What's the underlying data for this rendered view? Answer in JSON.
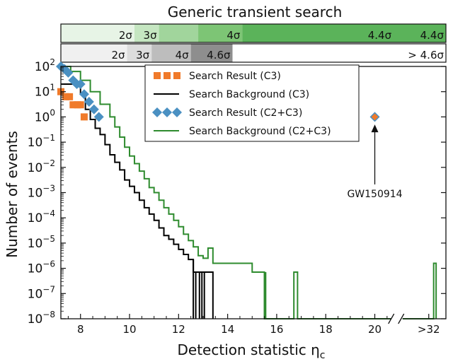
{
  "chart_data": {
    "type": "step-histogram",
    "title": "Generic transient search",
    "xlabel": "Detection statistic η",
    "xlabel_sub": "c",
    "ylabel": "Number of events",
    "yscale": "log",
    "ylim_exponents": [
      -8,
      2
    ],
    "xlim": [
      7.2,
      22.9
    ],
    "x_ticks": [
      {
        "value": 8,
        "label": "8"
      },
      {
        "value": 10,
        "label": "10"
      },
      {
        "value": 12,
        "label": "12"
      },
      {
        "value": 14,
        "label": "14"
      },
      {
        "value": 16,
        "label": "16"
      },
      {
        "value": 18,
        "label": "18"
      },
      {
        "value": 20,
        "label": "20"
      },
      {
        "value": 22.2,
        "label": ">32"
      }
    ],
    "axis_break_at": 20.9,
    "significance_bands": {
      "c2c3": {
        "bands": [
          {
            "from": 7.2,
            "to": 10.2,
            "label": "2σ",
            "color": "#e7f4e6"
          },
          {
            "from": 10.2,
            "to": 11.2,
            "label": "3σ",
            "color": "#c5e6c1"
          },
          {
            "from": 11.2,
            "to": 12.8,
            "label": "",
            "color": "#a1d59c"
          },
          {
            "from": 12.8,
            "to": 14.6,
            "label": "4σ",
            "color": "#7dc575"
          },
          {
            "from": 14.6,
            "to": 22.9,
            "label": "4.4σ",
            "color": "#5bb35a"
          }
        ],
        "extra_labels": [
          {
            "value": 20.2,
            "label": "4.4σ"
          }
        ]
      },
      "c3": {
        "bands": [
          {
            "from": 7.2,
            "to": 9.9,
            "label": "2σ",
            "color": "#f0f0f0"
          },
          {
            "from": 9.9,
            "to": 10.9,
            "label": "3σ",
            "color": "#dddddd"
          },
          {
            "from": 10.9,
            "to": 12.5,
            "label": "4σ",
            "color": "#bdbdbd"
          },
          {
            "from": 12.5,
            "to": 14.2,
            "label": "4.6σ",
            "color": "#8e8e8e"
          },
          {
            "from": 14.2,
            "to": 22.9,
            "label": "> 4.6σ",
            "color": "#ffffff"
          }
        ]
      }
    },
    "series": [
      {
        "name": "Search Result (C3)",
        "kind": "markers",
        "marker": "square",
        "color": "#f07a2a",
        "points": [
          {
            "x": 7.2,
            "log10y": 1.0
          },
          {
            "x": 7.4,
            "log10y": 0.8
          },
          {
            "x": 7.55,
            "log10y": 0.8
          },
          {
            "x": 7.7,
            "log10y": 0.48
          },
          {
            "x": 7.88,
            "log10y": 0.48
          },
          {
            "x": 8.0,
            "log10y": 0.48
          },
          {
            "x": 8.15,
            "log10y": 0.0
          }
        ]
      },
      {
        "name": "Search Background (C3)",
        "kind": "step",
        "color": "#000000",
        "steps": [
          {
            "x": 7.2,
            "log10y": 1.3
          },
          {
            "x": 8.0,
            "log10y": 0.9
          },
          {
            "x": 8.2,
            "log10y": 0.3
          },
          {
            "x": 8.4,
            "log10y": -0.1
          },
          {
            "x": 8.6,
            "log10y": -0.45
          },
          {
            "x": 8.8,
            "log10y": -0.7
          },
          {
            "x": 9.0,
            "log10y": -1.1
          },
          {
            "x": 9.2,
            "log10y": -1.5
          },
          {
            "x": 9.4,
            "log10y": -1.8
          },
          {
            "x": 9.6,
            "log10y": -2.1
          },
          {
            "x": 9.8,
            "log10y": -2.5
          },
          {
            "x": 10.0,
            "log10y": -2.75
          },
          {
            "x": 10.2,
            "log10y": -3.0
          },
          {
            "x": 10.4,
            "log10y": -3.3
          },
          {
            "x": 10.6,
            "log10y": -3.6
          },
          {
            "x": 10.8,
            "log10y": -3.85
          },
          {
            "x": 11.0,
            "log10y": -4.1
          },
          {
            "x": 11.2,
            "log10y": -4.4
          },
          {
            "x": 11.4,
            "log10y": -4.7
          },
          {
            "x": 11.6,
            "log10y": -4.85
          },
          {
            "x": 11.8,
            "log10y": -5.05
          },
          {
            "x": 12.0,
            "log10y": -5.25
          },
          {
            "x": 12.2,
            "log10y": -5.45
          },
          {
            "x": 12.4,
            "log10y": -5.65
          },
          {
            "x": 12.6,
            "log10y": -6.15
          },
          {
            "x": 12.8,
            "log10y": -6.15
          },
          {
            "x": 13.0,
            "log10y": -6.15
          },
          {
            "x": 13.2,
            "log10y": -6.15
          },
          {
            "x": 13.4,
            "log10y": -8.0
          }
        ],
        "drops": [
          {
            "x": 12.6,
            "from": -5.65,
            "to": -8.0
          },
          {
            "x": 12.7,
            "from": -8.0,
            "to": -6.15
          },
          {
            "x": 12.85,
            "from": -6.15,
            "to": -8.0
          },
          {
            "x": 12.95,
            "from": -8.0,
            "to": -6.15
          },
          {
            "x": 13.05,
            "from": -6.15,
            "to": -8.0
          }
        ]
      },
      {
        "name": "Search Result (C2+C3)",
        "kind": "markers",
        "marker": "diamond",
        "color": "#4a90c2",
        "points": [
          {
            "x": 7.2,
            "log10y": 2.0
          },
          {
            "x": 7.35,
            "log10y": 1.9
          },
          {
            "x": 7.5,
            "log10y": 1.75
          },
          {
            "x": 7.7,
            "log10y": 1.45
          },
          {
            "x": 7.85,
            "log10y": 1.3
          },
          {
            "x": 8.0,
            "log10y": 1.3
          },
          {
            "x": 8.15,
            "log10y": 0.9
          },
          {
            "x": 8.35,
            "log10y": 0.6
          },
          {
            "x": 8.55,
            "log10y": 0.3
          },
          {
            "x": 8.75,
            "log10y": 0.0
          },
          {
            "x": 20.0,
            "log10y": 0.0
          }
        ]
      },
      {
        "name": "Search Background (C2+C3)",
        "kind": "step",
        "color": "#2e8b2e",
        "steps": [
          {
            "x": 7.2,
            "log10y": 2.0
          },
          {
            "x": 7.6,
            "log10y": 1.8
          },
          {
            "x": 8.0,
            "log10y": 1.45
          },
          {
            "x": 8.4,
            "log10y": 1.0
          },
          {
            "x": 8.8,
            "log10y": 0.5
          },
          {
            "x": 9.2,
            "log10y": 0.0
          },
          {
            "x": 9.4,
            "log10y": -0.4
          },
          {
            "x": 9.6,
            "log10y": -0.8
          },
          {
            "x": 9.8,
            "log10y": -1.2
          },
          {
            "x": 10.0,
            "log10y": -1.55
          },
          {
            "x": 10.2,
            "log10y": -1.85
          },
          {
            "x": 10.4,
            "log10y": -2.15
          },
          {
            "x": 10.6,
            "log10y": -2.45
          },
          {
            "x": 10.8,
            "log10y": -2.8
          },
          {
            "x": 11.0,
            "log10y": -3.0
          },
          {
            "x": 11.2,
            "log10y": -3.3
          },
          {
            "x": 11.4,
            "log10y": -3.6
          },
          {
            "x": 11.6,
            "log10y": -3.85
          },
          {
            "x": 11.8,
            "log10y": -4.1
          },
          {
            "x": 12.0,
            "log10y": -4.35
          },
          {
            "x": 12.2,
            "log10y": -4.65
          },
          {
            "x": 12.4,
            "log10y": -4.9
          },
          {
            "x": 12.6,
            "log10y": -5.15
          },
          {
            "x": 12.8,
            "log10y": -5.5
          },
          {
            "x": 13.0,
            "log10y": -5.6
          },
          {
            "x": 13.2,
            "log10y": -5.2
          },
          {
            "x": 13.4,
            "log10y": -5.8
          },
          {
            "x": 14.0,
            "log10y": -5.8
          },
          {
            "x": 15.0,
            "log10y": -6.15
          },
          {
            "x": 15.5,
            "log10y": -8.0
          },
          {
            "x": 16.7,
            "log10y": -6.15
          },
          {
            "x": 16.85,
            "log10y": -8.0
          },
          {
            "x": 22.4,
            "log10y": -5.8
          },
          {
            "x": 22.5,
            "log10y": -8.0
          }
        ],
        "drops": [
          {
            "x": 15.5,
            "from": -8.0,
            "to": -6.15
          },
          {
            "x": 15.55,
            "from": -6.15,
            "to": -8.0
          }
        ]
      }
    ],
    "annotations": [
      {
        "text": "GW150914",
        "x": 20.0,
        "log10y": -2.9,
        "arrow_to_log10y": -0.3
      }
    ]
  }
}
